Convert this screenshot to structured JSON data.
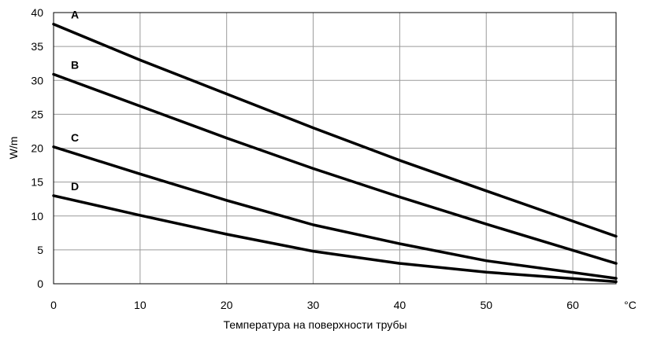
{
  "chart_data": {
    "type": "line",
    "title": "",
    "xlabel": "Температура на поверхности трубы",
    "ylabel": "W/m",
    "x_unit": "°C",
    "xlim": [
      0,
      65
    ],
    "ylim": [
      0,
      40
    ],
    "xticks": [
      0,
      10,
      20,
      30,
      40,
      50,
      60
    ],
    "yticks": [
      0,
      5,
      10,
      15,
      20,
      25,
      30,
      35,
      40
    ],
    "grid": true,
    "legend": "inline labels at left of each line",
    "series": [
      {
        "name": "A",
        "x": [
          0,
          10,
          20,
          30,
          40,
          50,
          65
        ],
        "y": [
          38.3,
          33,
          28,
          23,
          18.2,
          13.7,
          7
        ]
      },
      {
        "name": "B",
        "x": [
          0,
          10,
          20,
          30,
          40,
          50,
          65
        ],
        "y": [
          30.9,
          26.2,
          21.5,
          17,
          12.8,
          8.8,
          3
        ]
      },
      {
        "name": "C",
        "x": [
          0,
          10,
          20,
          30,
          40,
          50,
          65
        ],
        "y": [
          20.2,
          16.2,
          12.3,
          8.7,
          5.9,
          3.4,
          0.8
        ]
      },
      {
        "name": "D",
        "x": [
          0,
          10,
          20,
          30,
          40,
          50,
          65
        ],
        "y": [
          13,
          10.1,
          7.3,
          4.8,
          3,
          1.7,
          0.3
        ]
      }
    ]
  }
}
